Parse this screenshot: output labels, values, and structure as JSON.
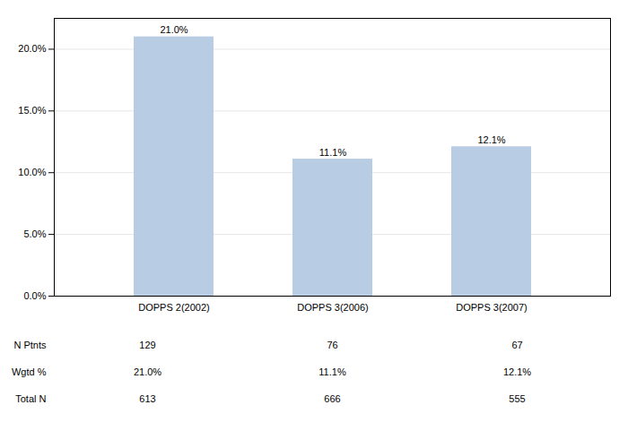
{
  "chart_data": {
    "type": "bar",
    "categories": [
      "DOPPS 2(2002)",
      "DOPPS 3(2006)",
      "DOPPS 3(2007)"
    ],
    "values": [
      21.0,
      11.1,
      12.1
    ],
    "value_labels": [
      "21.0%",
      "11.1%",
      "12.1%"
    ],
    "data_labels": true,
    "color": "#b8cce4",
    "ylim": [
      0,
      22.5
    ],
    "yticks": [
      {
        "value": 0,
        "label": "0.0%"
      },
      {
        "value": 5.0,
        "label": "5.0%"
      },
      {
        "value": 10.0,
        "label": "10.0%"
      },
      {
        "value": 15.0,
        "label": "15.0%"
      },
      {
        "value": 20.0,
        "label": "20.0%"
      }
    ],
    "grid": true,
    "table": {
      "rows": [
        {
          "label": "N Ptnts",
          "values": [
            129,
            76,
            67
          ]
        },
        {
          "label": "Wgtd %",
          "values": [
            21.0,
            11.1,
            12.1
          ],
          "value_labels": [
            "21.0%",
            "11.1%",
            "12.1%"
          ]
        },
        {
          "label": "Total N",
          "values": [
            613,
            666,
            555
          ]
        }
      ]
    }
  }
}
